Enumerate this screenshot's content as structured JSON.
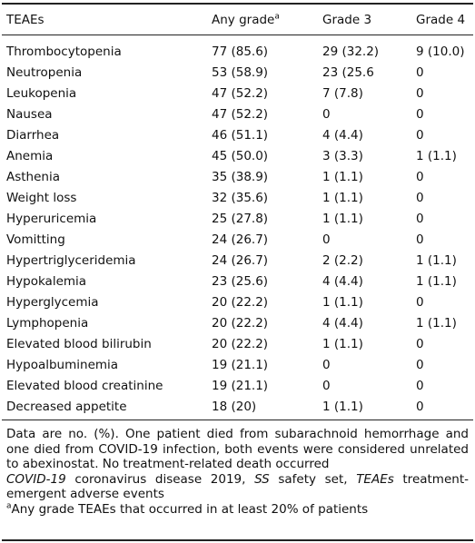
{
  "table": {
    "header": [
      {
        "text": "TEAEs"
      },
      {
        "text": "Any grade",
        "sup": "a"
      },
      {
        "text": "Grade 3"
      },
      {
        "text": "Grade 4"
      }
    ],
    "rows": [
      [
        "Thrombocytopenia",
        "77 (85.6)",
        "29 (32.2)",
        "9 (10.0)"
      ],
      [
        "Neutropenia",
        "53 (58.9)",
        "23 (25.6",
        "0"
      ],
      [
        "Leukopenia",
        "47 (52.2)",
        "7 (7.8)",
        "0"
      ],
      [
        "Nausea",
        "47 (52.2)",
        "0",
        "0"
      ],
      [
        "Diarrhea",
        "46 (51.1)",
        "4 (4.4)",
        "0"
      ],
      [
        "Anemia",
        "45 (50.0)",
        "3 (3.3)",
        "1 (1.1)"
      ],
      [
        "Asthenia",
        "35 (38.9)",
        "1 (1.1)",
        "0"
      ],
      [
        "Weight loss",
        "32 (35.6)",
        "1 (1.1)",
        "0"
      ],
      [
        "Hyperuricemia",
        "25 (27.8)",
        "1 (1.1)",
        "0"
      ],
      [
        "Vomitting",
        "24 (26.7)",
        "0",
        "0"
      ],
      [
        "Hypertriglyceridemia",
        "24 (26.7)",
        "2 (2.2)",
        "1 (1.1)"
      ],
      [
        "Hypokalemia",
        "23 (25.6)",
        "4 (4.4)",
        "1 (1.1)"
      ],
      [
        "Hyperglycemia",
        "20 (22.2)",
        "1 (1.1)",
        "0"
      ],
      [
        "Lymphopenia",
        "20 (22.2)",
        "4 (4.4)",
        "1 (1.1)"
      ],
      [
        "Elevated blood bilirubin",
        "20 (22.2)",
        "1 (1.1)",
        "0"
      ],
      [
        "Hypoalbuminemia",
        "19 (21.1)",
        "0",
        "0"
      ],
      [
        "Elevated blood creatinine",
        "19 (21.1)",
        "0",
        "0"
      ],
      [
        "Decreased appetite",
        "18 (20)",
        "1 (1.1)",
        "0"
      ]
    ]
  },
  "notes": [
    "Data are no. (%). One patient died from subarachnoid hemorrhage and one died from COVID-19 infection, both events were considered unrelated to abexinostat. No treatment-related death occurred",
    [
      "COVID-19",
      " coronavirus disease 2019, ",
      "SS",
      " safety set, ",
      "TEAEs",
      " treatment-emergent adverse events"
    ],
    [
      "a",
      "Any grade TEAEs that occurred in at least 20% of patients"
    ]
  ]
}
